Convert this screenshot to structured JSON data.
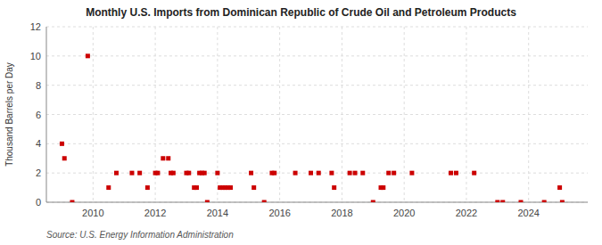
{
  "chart_data": {
    "type": "scatter",
    "title": "Monthly U.S. Imports from Dominican Republic of Crude Oil and Petroleum Products",
    "ylabel": "Thousand Barrels per Day",
    "source": "Source: U.S. Energy Information Administration",
    "color": "#cc0000",
    "marker": "square",
    "grid": true,
    "xlim": [
      2008.5,
      2025.9
    ],
    "xticks": [
      2010,
      2012,
      2014,
      2016,
      2018,
      2020,
      2022,
      2024
    ],
    "ylim": [
      0,
      12
    ],
    "yticks": [
      0,
      2,
      4,
      6,
      8,
      10,
      12
    ],
    "x": [
      2009.0,
      2009.08,
      2009.33,
      2009.83,
      2010.5,
      2010.75,
      2011.25,
      2011.5,
      2011.75,
      2012.0,
      2012.08,
      2012.25,
      2012.42,
      2012.5,
      2012.58,
      2013.0,
      2013.08,
      2013.25,
      2013.33,
      2013.42,
      2013.5,
      2013.58,
      2013.67,
      2014.0,
      2014.08,
      2014.17,
      2014.25,
      2014.33,
      2014.42,
      2015.08,
      2015.17,
      2015.5,
      2015.75,
      2015.83,
      2016.5,
      2017.0,
      2017.25,
      2017.67,
      2017.75,
      2018.25,
      2018.42,
      2018.67,
      2019.0,
      2019.25,
      2019.33,
      2019.5,
      2019.67,
      2020.25,
      2021.5,
      2021.67,
      2022.25,
      2023.0,
      2023.17,
      2023.75,
      2024.5,
      2025.0,
      2025.08
    ],
    "values": [
      4,
      3,
      0,
      10,
      1,
      2,
      2,
      2,
      1,
      2,
      2,
      3,
      3,
      2,
      2,
      2,
      2,
      1,
      1,
      2,
      2,
      2,
      0,
      2,
      1,
      1,
      1,
      1,
      1,
      2,
      1,
      0,
      2,
      2,
      2,
      2,
      2,
      2,
      1,
      2,
      2,
      2,
      0,
      1,
      1,
      2,
      2,
      2,
      2,
      2,
      2,
      0,
      0,
      0,
      0,
      1,
      0
    ]
  }
}
